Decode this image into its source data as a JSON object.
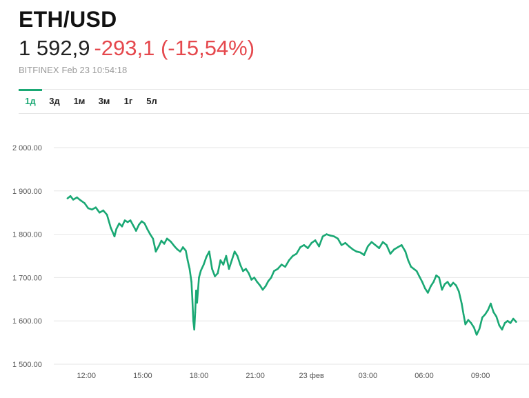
{
  "header": {
    "symbol": "ETH/USD",
    "price": "1 592,9",
    "change": "-293,1 (-15,54%)",
    "exchange": "BITFINEX",
    "timestamp": "Feb 23 10:54:18"
  },
  "tabs": [
    {
      "label": "1д",
      "active": true
    },
    {
      "label": "3д",
      "active": false
    },
    {
      "label": "1м",
      "active": false
    },
    {
      "label": "3м",
      "active": false
    },
    {
      "label": "1г",
      "active": false
    },
    {
      "label": "5л",
      "active": false
    }
  ],
  "colors": {
    "line": "#1aa874",
    "grid": "#e6e6e6",
    "negative": "#e5484d",
    "accent": "#1aa874"
  },
  "chart_data": {
    "type": "line",
    "title": "",
    "xlabel": "",
    "ylabel": "",
    "ylim": [
      1500,
      2000
    ],
    "xlim": [
      11,
      35
    ],
    "grid": true,
    "legend": "none",
    "yticks": [
      {
        "value": 2000,
        "label": "2 000.00"
      },
      {
        "value": 1900,
        "label": "1 900.00"
      },
      {
        "value": 1800,
        "label": "1 800.00"
      },
      {
        "value": 1700,
        "label": "1 700.00"
      },
      {
        "value": 1600,
        "label": "1 600.00"
      },
      {
        "value": 1500,
        "label": "1 500.00"
      }
    ],
    "xticks": [
      {
        "value": 12,
        "label": "12:00"
      },
      {
        "value": 15,
        "label": "15:00"
      },
      {
        "value": 18,
        "label": "18:00"
      },
      {
        "value": 21,
        "label": "21:00"
      },
      {
        "value": 24,
        "label": "23 фев"
      },
      {
        "value": 27,
        "label": "03:00"
      },
      {
        "value": 30,
        "label": "06:00"
      },
      {
        "value": 33,
        "label": "09:00"
      }
    ],
    "series": [
      {
        "x": [
          11.0,
          11.15,
          11.3,
          11.5,
          11.7,
          11.9,
          12.1,
          12.3,
          12.5,
          12.7,
          12.9,
          13.1,
          13.3,
          13.5,
          13.6,
          13.75,
          13.9,
          14.05,
          14.2,
          14.35,
          14.5,
          14.65,
          14.8,
          14.95,
          15.1,
          15.25,
          15.4,
          15.55,
          15.7,
          15.85,
          16.0,
          16.15,
          16.3,
          16.5,
          16.7,
          16.85,
          17.0,
          17.15,
          17.3,
          17.4,
          17.5,
          17.6,
          17.65,
          17.7,
          17.75,
          17.8,
          17.85,
          17.9,
          18.0,
          18.1,
          18.25,
          18.4,
          18.55,
          18.7,
          18.85,
          19.0,
          19.15,
          19.3,
          19.45,
          19.6,
          19.75,
          19.9,
          20.05,
          20.2,
          20.35,
          20.5,
          20.65,
          20.8,
          20.95,
          21.1,
          21.25,
          21.4,
          21.55,
          21.7,
          21.85,
          22.0,
          22.2,
          22.4,
          22.6,
          22.8,
          23.0,
          23.2,
          23.4,
          23.6,
          23.8,
          24.0,
          24.2,
          24.4,
          24.6,
          24.8,
          25.0,
          25.2,
          25.4,
          25.6,
          25.8,
          26.0,
          26.2,
          26.4,
          26.6,
          26.8,
          27.0,
          27.2,
          27.4,
          27.6,
          27.8,
          28.0,
          28.2,
          28.4,
          28.6,
          28.8,
          29.0,
          29.15,
          29.3,
          29.45,
          29.6,
          29.75,
          29.9,
          30.05,
          30.2,
          30.35,
          30.5,
          30.65,
          30.8,
          30.95,
          31.1,
          31.25,
          31.4,
          31.55,
          31.7,
          31.85,
          32.0,
          32.1,
          32.2,
          32.35,
          32.5,
          32.65,
          32.8,
          32.95,
          33.1,
          33.25,
          33.4,
          33.55,
          33.7,
          33.85,
          34.0,
          34.15,
          34.3,
          34.45,
          34.6,
          34.75,
          34.9
        ],
        "values": [
          1883,
          1888,
          1880,
          1885,
          1878,
          1872,
          1860,
          1857,
          1862,
          1850,
          1855,
          1845,
          1815,
          1795,
          1812,
          1825,
          1818,
          1832,
          1828,
          1832,
          1820,
          1808,
          1822,
          1830,
          1825,
          1812,
          1800,
          1790,
          1760,
          1772,
          1785,
          1778,
          1790,
          1783,
          1772,
          1765,
          1760,
          1770,
          1762,
          1740,
          1720,
          1690,
          1650,
          1600,
          1580,
          1620,
          1670,
          1642,
          1700,
          1716,
          1730,
          1748,
          1760,
          1720,
          1703,
          1710,
          1740,
          1730,
          1750,
          1720,
          1740,
          1760,
          1750,
          1730,
          1715,
          1720,
          1710,
          1695,
          1700,
          1690,
          1682,
          1672,
          1680,
          1692,
          1700,
          1715,
          1720,
          1730,
          1725,
          1740,
          1750,
          1755,
          1770,
          1775,
          1768,
          1780,
          1786,
          1772,
          1795,
          1800,
          1797,
          1795,
          1790,
          1775,
          1780,
          1772,
          1765,
          1760,
          1758,
          1752,
          1772,
          1782,
          1775,
          1768,
          1782,
          1775,
          1755,
          1765,
          1770,
          1775,
          1760,
          1740,
          1725,
          1720,
          1715,
          1702,
          1690,
          1675,
          1665,
          1680,
          1690,
          1705,
          1700,
          1672,
          1685,
          1690,
          1680,
          1688,
          1682,
          1668,
          1640,
          1615,
          1592,
          1602,
          1595,
          1585,
          1568,
          1582,
          1608,
          1615,
          1625,
          1640,
          1620,
          1610,
          1590,
          1580,
          1595,
          1600,
          1595,
          1605,
          1598
        ],
        "color": "#1aa874"
      }
    ]
  }
}
